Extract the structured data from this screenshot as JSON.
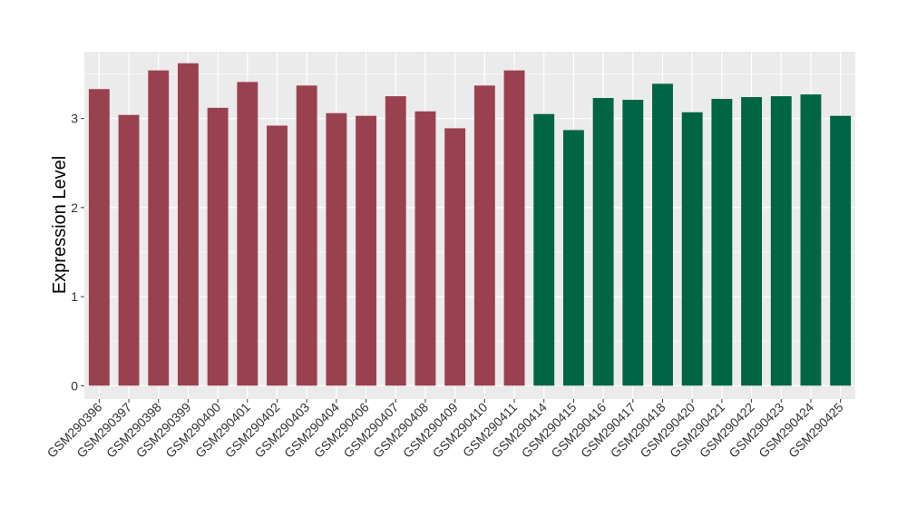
{
  "chart_data": {
    "type": "bar",
    "title": "",
    "xlabel": "",
    "ylabel": "Expression Level",
    "ylim": [
      -0.15,
      3.75
    ],
    "yticks": [
      0,
      1,
      2,
      3
    ],
    "grid": true,
    "legend": "none",
    "categories": [
      "GSM290396",
      "GSM290397",
      "GSM290398",
      "GSM290399",
      "GSM290400",
      "GSM290401",
      "GSM290402",
      "GSM290403",
      "GSM290404",
      "GSM290406",
      "GSM290407",
      "GSM290408",
      "GSM290409",
      "GSM290410",
      "GSM290411",
      "GSM290414",
      "GSM290415",
      "GSM290416",
      "GSM290417",
      "GSM290418",
      "GSM290420",
      "GSM290421",
      "GSM290422",
      "GSM290423",
      "GSM290424",
      "GSM290425"
    ],
    "values": [
      3.33,
      3.04,
      3.54,
      3.62,
      3.12,
      3.41,
      2.92,
      3.37,
      3.06,
      3.03,
      3.25,
      3.08,
      2.89,
      3.37,
      3.54,
      3.05,
      2.87,
      3.23,
      3.21,
      3.39,
      3.07,
      3.22,
      3.24,
      3.25,
      3.27,
      3.03
    ],
    "groups": [
      "a",
      "a",
      "a",
      "a",
      "a",
      "a",
      "a",
      "a",
      "a",
      "a",
      "a",
      "a",
      "a",
      "a",
      "a",
      "b",
      "b",
      "b",
      "b",
      "b",
      "b",
      "b",
      "b",
      "b",
      "b",
      "b"
    ],
    "colors": {
      "a": "#9a4150",
      "b": "#006544",
      "panel": "#ebebeb",
      "grid": "#ffffff"
    }
  }
}
